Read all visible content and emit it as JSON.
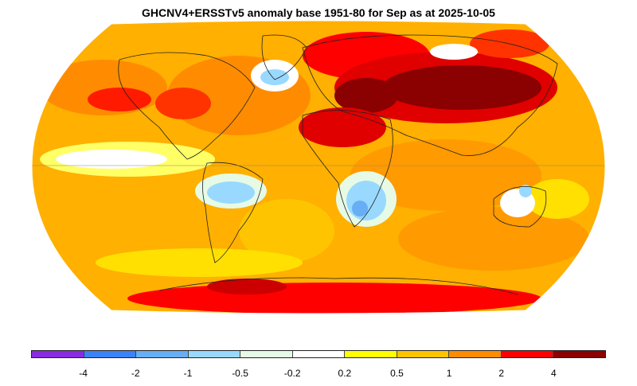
{
  "title": "GHCNV4+ERSSTv5 anomaly base 1951-80 for Sep as at 2025-10-05",
  "legend": {
    "colors": [
      "#8a2be2",
      "#3b82f6",
      "#67aef5",
      "#99d9ff",
      "#e6fae6",
      "#ffffff",
      "#ffff00",
      "#ffc400",
      "#ff8c00",
      "#ff0000",
      "#8b0000"
    ],
    "ticks": [
      "-4",
      "-2",
      "-1",
      "-0.5",
      "-0.2",
      "0.2",
      "0.5",
      "1",
      "2",
      "4"
    ]
  },
  "map": {
    "projection": "Robinson",
    "background_color": "#ffb000"
  }
}
